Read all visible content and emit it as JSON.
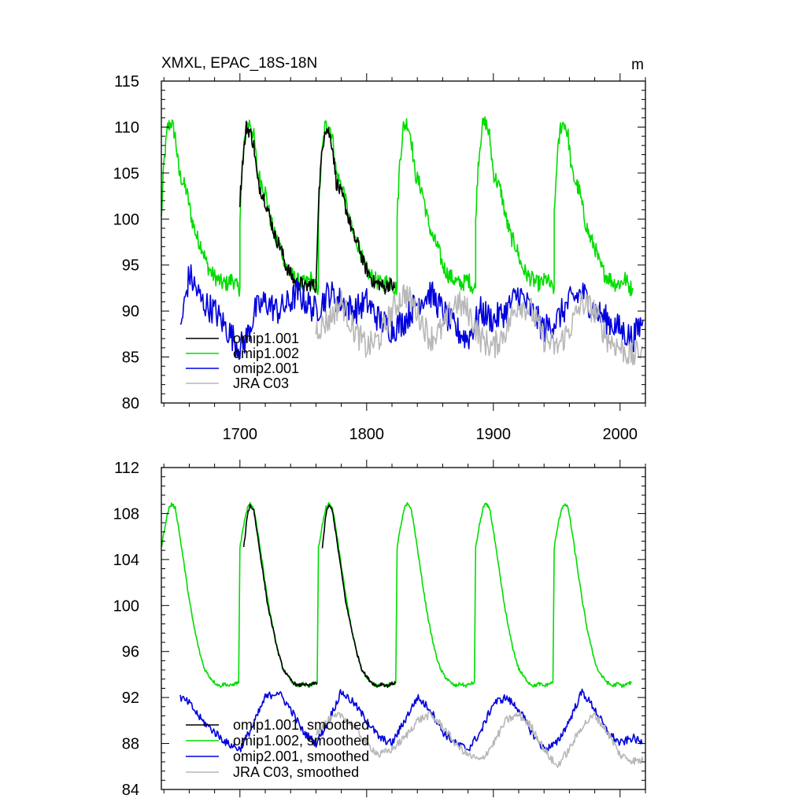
{
  "colors": {
    "omip1_001": "#000000",
    "omip1_002": "#00dd00",
    "omip2_001": "#0000dd",
    "jra_c03": "#b8b8b8"
  },
  "chart_data": [
    {
      "type": "line",
      "title": "XMXL, EPAC_18S-18N",
      "unit_label": "m",
      "xlim": [
        1638,
        2020
      ],
      "ylim": [
        80,
        115
      ],
      "yticks": [
        80,
        85,
        90,
        95,
        100,
        105,
        110,
        115
      ],
      "xticks": [
        1700,
        1800,
        1900,
        2000
      ],
      "legend_position": "lower-left",
      "legend": [
        "omip1.001",
        "omip1.002",
        "omip2.001",
        "JRA C03"
      ],
      "series": [
        {
          "name": "omip1.001",
          "color_key": "omip1_001",
          "cycles": [
            1700,
            1762
          ],
          "points": [
            [
              0,
              102
            ],
            [
              2,
              106
            ],
            [
              5,
              110
            ],
            [
              8,
              109.5
            ],
            [
              11,
              108
            ],
            [
              14,
              104
            ],
            [
              17,
              103
            ],
            [
              20,
              102
            ],
            [
              24,
              100
            ],
            [
              28,
              98
            ],
            [
              32,
              97
            ],
            [
              36,
              95
            ],
            [
              40,
              94
            ],
            [
              44,
              93
            ],
            [
              48,
              93
            ],
            [
              52,
              92.5
            ],
            [
              56,
              93
            ],
            [
              60,
              92.5
            ]
          ]
        },
        {
          "name": "omip1.002",
          "color_key": "omip1_002",
          "cycles": [
            1638,
            1700,
            1762,
            1824,
            1886,
            1948
          ],
          "points": [
            [
              0,
              100
            ],
            [
              2,
              106
            ],
            [
              5,
              110
            ],
            [
              8,
              110.5
            ],
            [
              11,
              109
            ],
            [
              14,
              105
            ],
            [
              17,
              104
            ],
            [
              20,
              103
            ],
            [
              24,
              100
            ],
            [
              28,
              98
            ],
            [
              32,
              97
            ],
            [
              36,
              95
            ],
            [
              40,
              94
            ],
            [
              44,
              93.5
            ],
            [
              48,
              93
            ],
            [
              52,
              93
            ],
            [
              56,
              93.5
            ],
            [
              60,
              92.5
            ],
            [
              62,
              92.5
            ]
          ]
        },
        {
          "name": "omip2.001",
          "color_key": "omip2_001",
          "x": [
            1653,
            1660,
            1670,
            1680,
            1690,
            1700,
            1705,
            1712,
            1720,
            1730,
            1740,
            1745,
            1752,
            1760,
            1770,
            1780,
            1790,
            1800,
            1810,
            1820,
            1830,
            1840,
            1850,
            1860,
            1870,
            1880,
            1890,
            1900,
            1910,
            1920,
            1930,
            1940,
            1950,
            1960,
            1970,
            1980,
            1990,
            2000,
            2010,
            2018
          ],
          "y": [
            88,
            94,
            91,
            90,
            88,
            86,
            87,
            90,
            91,
            90,
            91,
            92,
            91,
            90,
            92,
            91,
            90,
            91,
            89,
            88,
            89,
            91,
            92,
            90,
            88,
            87,
            90,
            89,
            90,
            92,
            90,
            88,
            89,
            91,
            92,
            90,
            89,
            88,
            87,
            89
          ]
        },
        {
          "name": "JRA C03",
          "color_key": "jra_c03",
          "x": [
            1760,
            1770,
            1780,
            1790,
            1800,
            1810,
            1820,
            1830,
            1840,
            1850,
            1860,
            1870,
            1880,
            1890,
            1900,
            1910,
            1920,
            1930,
            1940,
            1950,
            1960,
            1970,
            1980,
            1990,
            2000,
            2010,
            2018
          ],
          "y": [
            88,
            89,
            91,
            88,
            86,
            87,
            90,
            92,
            90,
            87,
            88,
            91,
            90,
            87,
            86,
            88,
            91,
            90,
            87,
            86,
            88,
            91,
            90,
            87,
            86,
            85,
            86
          ]
        }
      ]
    },
    {
      "type": "line",
      "title": "",
      "xlim": [
        1638,
        2020
      ],
      "ylim": [
        84,
        112
      ],
      "yticks": [
        84,
        88,
        92,
        96,
        100,
        104,
        108,
        112
      ],
      "xticks": [
        1700,
        1800,
        1900,
        2000
      ],
      "legend_position": "lower-left",
      "legend": [
        "omip1.001, smoothed",
        "omip1.002, smoothed",
        "omip2.001, smoothed",
        "JRA C03, smoothed"
      ],
      "series": [
        {
          "name": "omip1.001, smoothed",
          "color_key": "omip1_001",
          "cycles": [
            1700,
            1762
          ],
          "points": [
            [
              3,
              105
            ],
            [
              6,
              108
            ],
            [
              8,
              108.7
            ],
            [
              11,
              108.3
            ],
            [
              14,
              106
            ],
            [
              18,
              103
            ],
            [
              22,
              100
            ],
            [
              26,
              98
            ],
            [
              30,
              96
            ],
            [
              34,
              94.5
            ],
            [
              38,
              93.8
            ],
            [
              42,
              93.3
            ],
            [
              46,
              93
            ],
            [
              50,
              93.2
            ],
            [
              54,
              93
            ],
            [
              58,
              93.2
            ],
            [
              61,
              93.3
            ]
          ]
        },
        {
          "name": "omip1.002, smoothed",
          "color_key": "omip1_002",
          "cycles": [
            1638,
            1700,
            1762,
            1824,
            1886,
            1948
          ],
          "points": [
            [
              0,
              105
            ],
            [
              3,
              107
            ],
            [
              6,
              108.5
            ],
            [
              8,
              108.8
            ],
            [
              11,
              108.5
            ],
            [
              14,
              106.5
            ],
            [
              18,
              103.5
            ],
            [
              22,
              100.5
            ],
            [
              26,
              98
            ],
            [
              30,
              96
            ],
            [
              34,
              94.5
            ],
            [
              38,
              93.8
            ],
            [
              42,
              93.3
            ],
            [
              46,
              93
            ],
            [
              50,
              93.2
            ],
            [
              54,
              93
            ],
            [
              58,
              93.2
            ],
            [
              61,
              93.3
            ]
          ]
        },
        {
          "name": "omip2.001, smoothed",
          "color_key": "omip2_001",
          "x": [
            1653,
            1660,
            1670,
            1680,
            1690,
            1700,
            1710,
            1720,
            1730,
            1740,
            1750,
            1760,
            1770,
            1780,
            1790,
            1800,
            1810,
            1820,
            1830,
            1840,
            1850,
            1860,
            1870,
            1880,
            1890,
            1900,
            1910,
            1920,
            1930,
            1940,
            1950,
            1960,
            1970,
            1980,
            1990,
            2000,
            2010,
            2018
          ],
          "y": [
            92,
            91.5,
            90,
            89,
            88,
            87.5,
            89.5,
            92,
            92.5,
            91,
            89,
            88,
            90,
            92.5,
            91.5,
            90,
            88.5,
            88,
            90,
            92,
            91,
            89,
            88,
            87.5,
            89,
            91.5,
            92,
            91,
            89,
            87.5,
            88,
            90,
            92.5,
            91,
            89,
            88,
            88.5,
            88
          ]
        },
        {
          "name": "JRA C03, smoothed",
          "color_key": "jra_c03",
          "x": [
            1760,
            1770,
            1780,
            1790,
            1800,
            1810,
            1820,
            1830,
            1840,
            1850,
            1860,
            1870,
            1880,
            1890,
            1900,
            1910,
            1920,
            1930,
            1940,
            1950,
            1960,
            1970,
            1980,
            1990,
            2000,
            2010,
            2018
          ],
          "y": [
            89,
            90,
            90.5,
            89.5,
            88,
            87,
            87.5,
            88.5,
            90,
            90.5,
            89.5,
            88,
            87,
            86.5,
            88,
            90,
            90.5,
            89.5,
            87.5,
            86,
            87.5,
            89.5,
            90.5,
            89,
            87,
            86.5,
            86.5
          ]
        }
      ]
    }
  ]
}
